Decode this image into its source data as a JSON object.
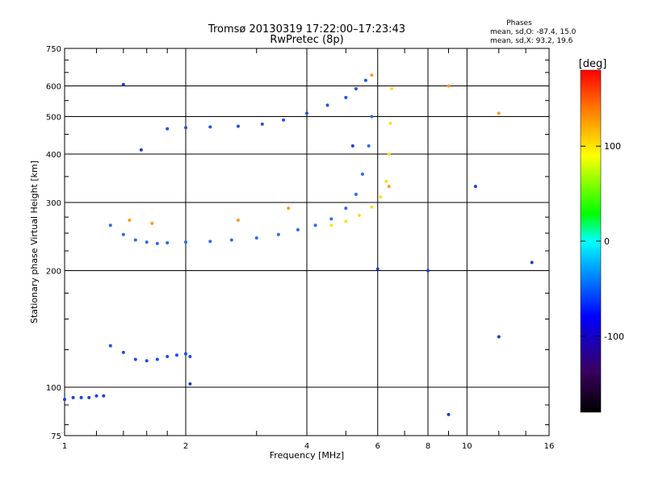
{
  "header": {
    "title": "Tromsø 20130319 17:22:00–17:23:43",
    "subtitle": "RwPretec (8p)",
    "stats_heading": "Phases",
    "stats_o": "mean, sd,O: -87.4, 15.0",
    "stats_x": "mean, sd,X:  93.2, 19.6"
  },
  "chart_data": {
    "type": "scatter",
    "title": "Tromsø 20130319 17:22:00–17:23:43",
    "subtitle": "RwPretec (8p)",
    "xlabel": "Frequency [MHz]",
    "ylabel": "Stationary phase Virtual Height [km]",
    "x_scale": "log",
    "y_scale": "log",
    "xlim": [
      1,
      16
    ],
    "ylim": [
      75,
      750
    ],
    "x_ticks": [
      1,
      2,
      4,
      6,
      8,
      10,
      16
    ],
    "x_tick_labels": [
      "1",
      "2",
      "4",
      "6",
      "8",
      "10",
      "16"
    ],
    "y_ticks": [
      75,
      100,
      200,
      300,
      400,
      500,
      600,
      750
    ],
    "y_tick_labels": [
      "75",
      "100",
      "200",
      "300",
      "400",
      "500",
      "600",
      "750"
    ],
    "grid": true,
    "grid_x": [
      2,
      4,
      6,
      8,
      10
    ],
    "grid_y": [
      100,
      200,
      300,
      400,
      500,
      600
    ],
    "colorbar": {
      "unit": "[deg]",
      "range": [
        -180,
        180
      ],
      "ticks": [
        100,
        0,
        -100
      ],
      "tick_labels": [
        "100",
        "0",
        "-100"
      ],
      "colormap": [
        "#000000",
        "#3a0060",
        "#0000ff",
        "#00a0ff",
        "#00ffff",
        "#00ff00",
        "#ffff00",
        "#ff8000",
        "#ff0000"
      ]
    },
    "series": [
      {
        "name": "",
        "color": "#1840e0",
        "x": [
          1.0,
          1.05,
          1.1,
          1.15,
          1.2,
          1.25
        ],
        "y": [
          93,
          94,
          94,
          94,
          95,
          95
        ]
      },
      {
        "name": "",
        "color": "#1a4cf0",
        "x": [
          1.3,
          1.4,
          1.5,
          1.6,
          1.7,
          1.8,
          1.9,
          2.0,
          2.05
        ],
        "y": [
          128,
          123,
          118,
          117,
          118,
          120,
          121,
          122,
          120
        ]
      },
      {
        "name": "",
        "color": "#2a6af0",
        "x": [
          1.3,
          1.4,
          1.5,
          1.6,
          1.7,
          1.8,
          2.0,
          2.3,
          2.6,
          3.0,
          3.4,
          3.8,
          4.2,
          4.6,
          5.0,
          5.3,
          5.5,
          5.7,
          5.8
        ],
        "y": [
          262,
          248,
          240,
          237,
          235,
          236,
          237,
          238,
          240,
          243,
          248,
          255,
          262,
          272,
          290,
          315,
          355,
          420,
          500
        ]
      },
      {
        "name": "",
        "color": "#ffe020",
        "x": [
          4.6,
          5.0,
          5.4,
          5.8,
          6.1,
          6.3,
          6.4,
          6.45,
          6.5
        ],
        "y": [
          262,
          268,
          278,
          292,
          310,
          340,
          400,
          480,
          590
        ]
      },
      {
        "name": "",
        "color": "#2050e8",
        "x": [
          1.8,
          2.0,
          2.3,
          2.7,
          3.1,
          3.5,
          4.0,
          4.5,
          5.0,
          5.3,
          5.6
        ],
        "y": [
          465,
          468,
          470,
          472,
          478,
          490,
          510,
          535,
          560,
          590,
          620
        ]
      },
      {
        "name": "",
        "color": "#ff9a20",
        "x": [
          1.45,
          1.65,
          2.7,
          3.6,
          5.8,
          6.4,
          9.0,
          12.0
        ],
        "y": [
          270,
          265,
          270,
          290,
          640,
          330,
          600,
          510
        ]
      },
      {
        "name": "",
        "color": "#1a3cd0",
        "x": [
          1.4,
          1.55,
          2.05,
          5.2,
          6.0,
          8.0,
          9.0,
          10.5,
          12.0,
          14.5
        ],
        "y": [
          605,
          410,
          102,
          420,
          202,
          200,
          85,
          330,
          135,
          210
        ]
      }
    ]
  }
}
